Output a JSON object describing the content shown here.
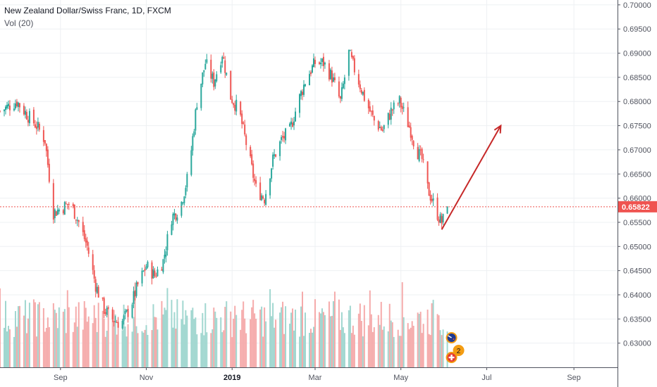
{
  "legend": {
    "title": "New Zealand Dollar/Swiss Franc, 1D, FXCM",
    "indicator": "Vol (20)"
  },
  "last_price": {
    "label": "0.65822",
    "value": 0.65822,
    "color": "#ef5350"
  },
  "colors": {
    "up": "#26a69a",
    "down": "#ef5350",
    "vol_up": "#9fd6cf",
    "vol_down": "#f5a9a9",
    "arrow": "#c62828",
    "grid": "#eef0f3"
  },
  "icons": [
    "nzd-flag-icon",
    "chf-flag-icon"
  ],
  "event_badge_count": "2",
  "chart_data": {
    "type": "candlestick",
    "title": "New Zealand Dollar/Swiss Franc, 1D, FXCM",
    "ylim": [
      0.625,
      0.701
    ],
    "y_ticks": [
      "0.70000",
      "0.69500",
      "0.69000",
      "0.68500",
      "0.68000",
      "0.67500",
      "0.67000",
      "0.66500",
      "0.66000",
      "0.65500",
      "0.65000",
      "0.64500",
      "0.64000",
      "0.63500",
      "0.63000"
    ],
    "x_ticks": [
      {
        "label": "Sep",
        "day": 31,
        "bold": false
      },
      {
        "label": "Nov",
        "day": 92,
        "bold": false
      },
      {
        "label": "2019",
        "day": 153,
        "bold": true
      },
      {
        "label": "Mar",
        "day": 212,
        "bold": false
      },
      {
        "label": "May",
        "day": 273,
        "bold": false
      },
      {
        "label": "Jul",
        "day": 334,
        "bold": false
      },
      {
        "label": "Sep",
        "day": 396,
        "bold": false
      }
    ],
    "x_range_days": [
      -12,
      427
    ],
    "start_date": "2018-08-01",
    "close_anchors": [
      [
        -12,
        0.678
      ],
      [
        0,
        0.68
      ],
      [
        8,
        0.677
      ],
      [
        14,
        0.675
      ],
      [
        20,
        0.672
      ],
      [
        26,
        0.657
      ],
      [
        32,
        0.658
      ],
      [
        38,
        0.659
      ],
      [
        44,
        0.655
      ],
      [
        50,
        0.65
      ],
      [
        56,
        0.642
      ],
      [
        62,
        0.637
      ],
      [
        68,
        0.635
      ],
      [
        74,
        0.634
      ],
      [
        80,
        0.637
      ],
      [
        86,
        0.642
      ],
      [
        92,
        0.646
      ],
      [
        98,
        0.644
      ],
      [
        104,
        0.647
      ],
      [
        110,
        0.656
      ],
      [
        116,
        0.658
      ],
      [
        122,
        0.665
      ],
      [
        128,
        0.68
      ],
      [
        134,
        0.688
      ],
      [
        140,
        0.684
      ],
      [
        146,
        0.69
      ],
      [
        152,
        0.681
      ],
      [
        158,
        0.678
      ],
      [
        164,
        0.67
      ],
      [
        170,
        0.662
      ],
      [
        176,
        0.66
      ],
      [
        182,
        0.668
      ],
      [
        188,
        0.672
      ],
      [
        194,
        0.674
      ],
      [
        200,
        0.68
      ],
      [
        206,
        0.685
      ],
      [
        212,
        0.688
      ],
      [
        218,
        0.688
      ],
      [
        224,
        0.685
      ],
      [
        230,
        0.68
      ],
      [
        236,
        0.69
      ],
      [
        242,
        0.685
      ],
      [
        248,
        0.68
      ],
      [
        254,
        0.676
      ],
      [
        260,
        0.674
      ],
      [
        266,
        0.678
      ],
      [
        272,
        0.68
      ],
      [
        276,
        0.677
      ],
      [
        280,
        0.674
      ],
      [
        284,
        0.67
      ],
      [
        288,
        0.668
      ],
      [
        292,
        0.662
      ],
      [
        296,
        0.659
      ],
      [
        300,
        0.656
      ],
      [
        302,
        0.655
      ],
      [
        304,
        0.656
      ],
      [
        306,
        0.6582
      ]
    ],
    "volume_range": [
      0,
      100
    ],
    "projection_arrow": {
      "from": [
        302,
        0.6535
      ],
      "to": [
        344,
        0.675
      ]
    }
  }
}
